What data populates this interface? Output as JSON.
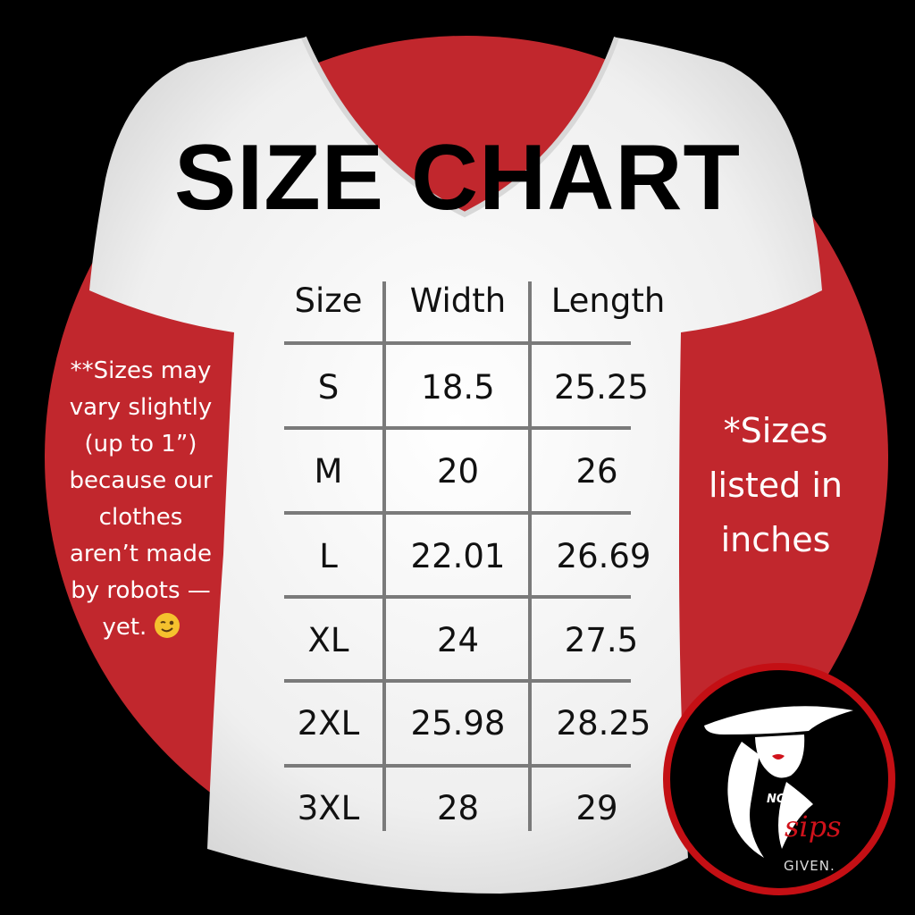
{
  "title": "SIZE CHART",
  "table": {
    "headers": [
      "Size",
      "Width",
      "Length"
    ],
    "rows": [
      [
        "S",
        "18.5",
        "25.25"
      ],
      [
        "M",
        "20",
        "26"
      ],
      [
        "L",
        "22.01",
        "26.69"
      ],
      [
        "XL",
        "24",
        "27.5"
      ],
      [
        "2XL",
        "25.98",
        "28.25"
      ],
      [
        "3XL",
        "28",
        "29"
      ]
    ]
  },
  "notes": {
    "left_lines": [
      "**Sizes may",
      "vary slightly",
      "(up to 1”)",
      "because our",
      "clothes",
      "aren’t made",
      "by robots —",
      "yet."
    ],
    "left_emoji": "winking-face-icon",
    "right_lines": [
      "*Sizes",
      "listed in",
      "inches"
    ]
  },
  "logo": {
    "text_top": "NO",
    "text_script": "sips",
    "text_bottom": "GIVEN."
  },
  "colors": {
    "background": "#000000",
    "circle": "#c1272d",
    "shirt": "#f2f2f2",
    "logo_ring": "#c40f14"
  }
}
